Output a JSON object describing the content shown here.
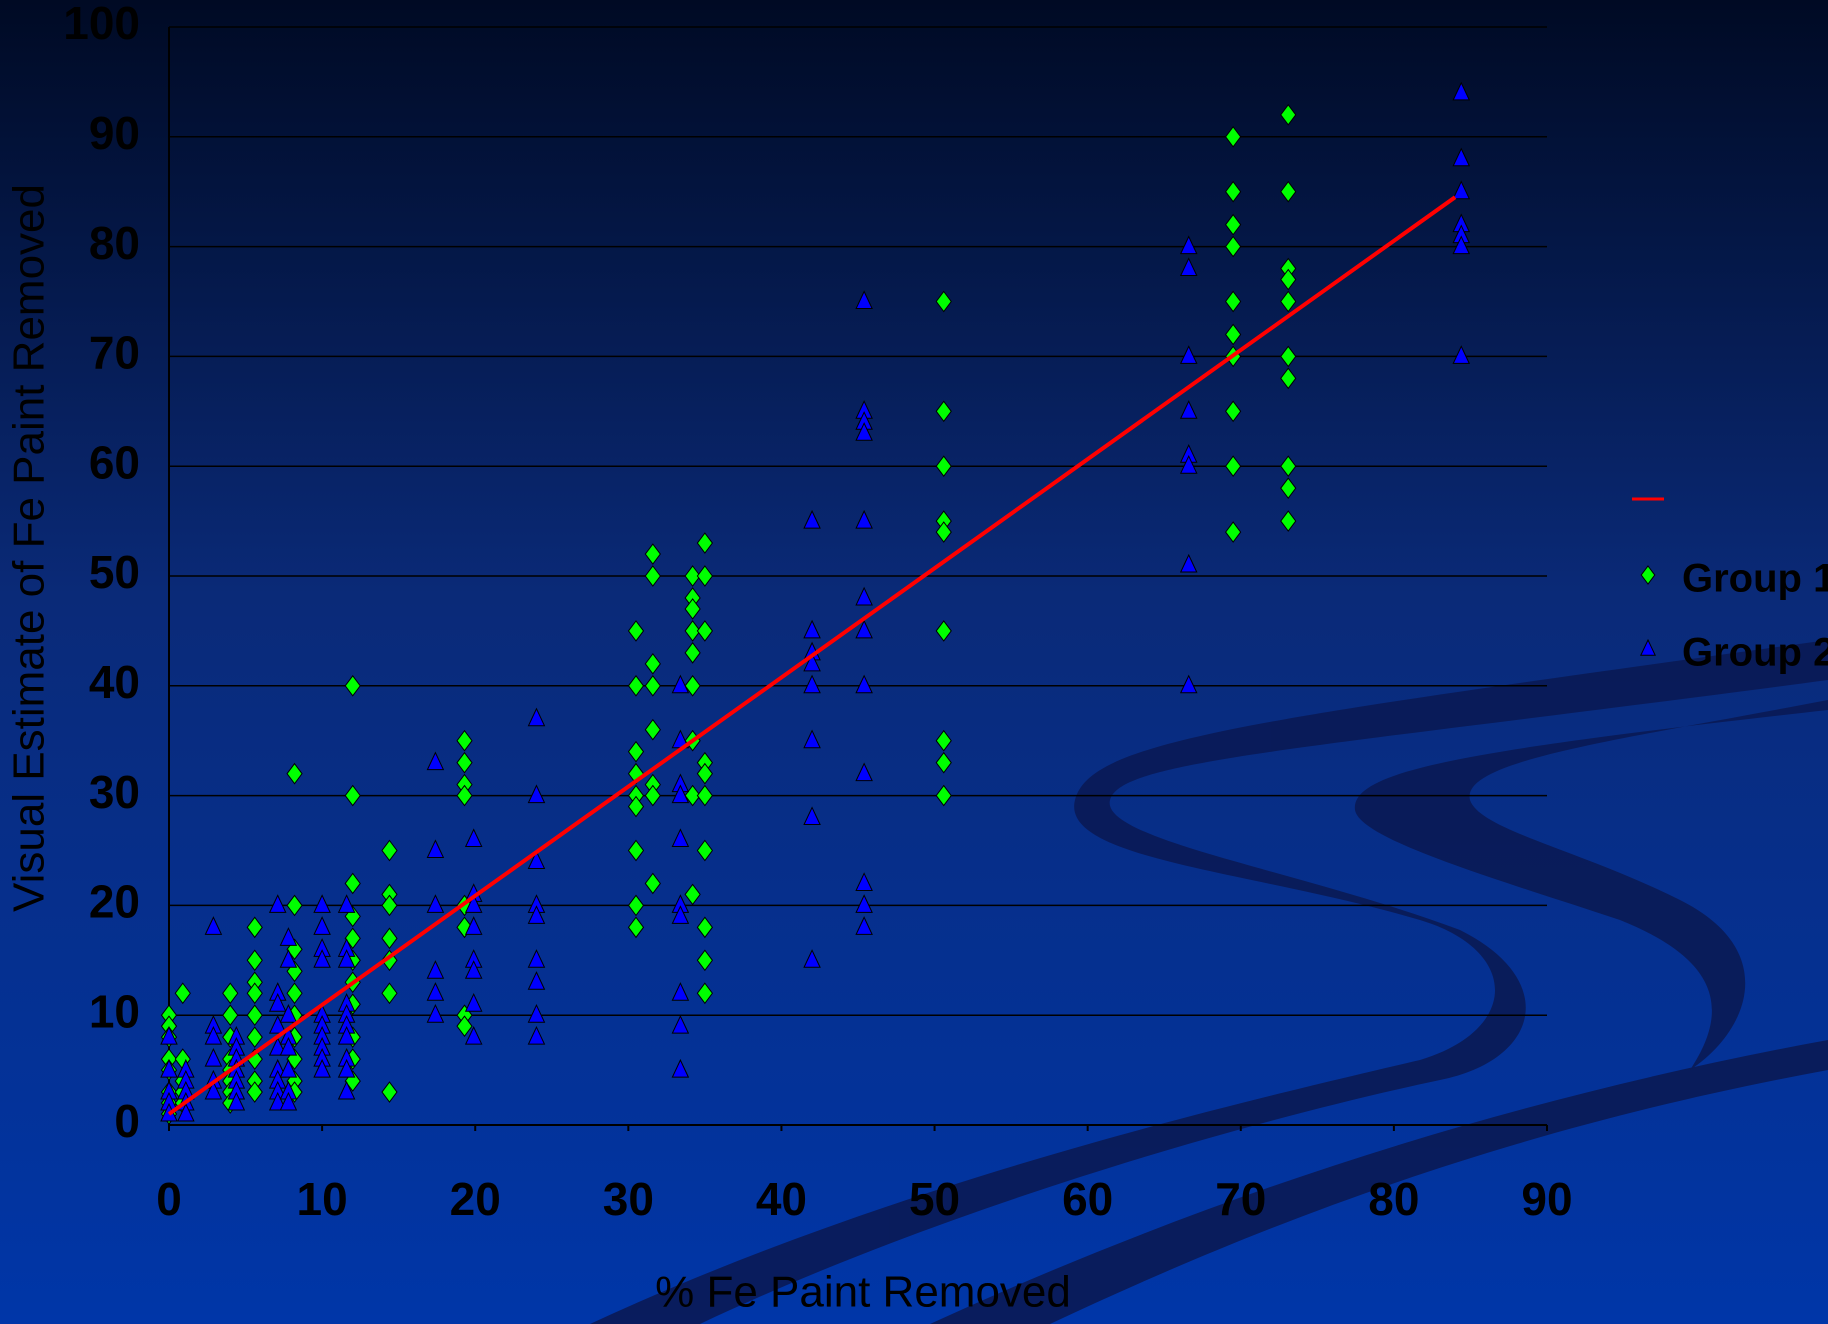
{
  "chart_data": {
    "type": "scatter",
    "xlabel": "% Fe Paint Removed",
    "ylabel": "Visual Estimate of Fe Paint Removed",
    "xlim": [
      0,
      90
    ],
    "xticks": [
      0,
      10,
      20,
      30,
      40,
      50,
      60,
      70,
      80,
      90
    ],
    "ylim": [
      0,
      100
    ],
    "yticks": [
      0,
      10,
      20,
      30,
      40,
      50,
      60,
      70,
      80,
      90,
      100
    ],
    "grid": true,
    "legend": "right",
    "trendline": {
      "color": "#ff0000",
      "x": [
        0,
        84
      ],
      "values": [
        1,
        84.5
      ]
    },
    "series": [
      {
        "name": "Group 1",
        "color": "#00ff00",
        "marker": "diamond",
        "x": [
          0,
          0,
          0,
          0,
          0,
          0,
          0,
          0,
          0.9,
          0.9,
          0.9,
          0.9,
          0.9,
          4,
          4,
          4,
          4,
          4,
          4,
          4,
          4,
          5.6,
          5.6,
          5.6,
          5.6,
          5.6,
          5.6,
          5.6,
          5.6,
          5.6,
          8.2,
          8.2,
          8.2,
          8.2,
          8.2,
          8.2,
          8.2,
          8.2,
          8.2,
          8.2,
          12,
          12,
          12,
          12,
          12,
          12,
          12,
          12,
          12,
          12,
          12,
          14.4,
          14.4,
          14.4,
          14.4,
          14.4,
          14.4,
          14.4,
          19.3,
          19.3,
          19.3,
          19.3,
          19.3,
          19.3,
          19.3,
          19.3,
          30.5,
          30.5,
          30.5,
          30.5,
          30.5,
          30.5,
          30.5,
          30.5,
          30.5,
          31.6,
          31.6,
          31.6,
          31.6,
          31.6,
          31.6,
          31.6,
          31.6,
          34.2,
          34.2,
          34.2,
          34.2,
          34.2,
          34.2,
          34.2,
          34.2,
          34.2,
          35,
          35,
          35,
          35,
          35,
          35,
          35,
          35,
          35,
          35,
          50.6,
          50.6,
          50.6,
          50.6,
          50.6,
          50.6,
          50.6,
          50.6,
          50.6,
          69.5,
          69.5,
          69.5,
          69.5,
          69.5,
          69.5,
          69.5,
          69.5,
          69.5,
          69.5,
          73.1,
          73.1,
          73.1,
          73.1,
          73.1,
          73.1,
          73.1,
          73.1,
          73.1,
          73.1
        ],
        "values": [
          10,
          9,
          8,
          6,
          5,
          3,
          2,
          1,
          12,
          6,
          4,
          3,
          2,
          12,
          10,
          8,
          6,
          5,
          4,
          3,
          2,
          18,
          15,
          13,
          12,
          10,
          8,
          6,
          4,
          3,
          32,
          20,
          16,
          14,
          12,
          10,
          8,
          6,
          4,
          3,
          40,
          30,
          22,
          19,
          17,
          15,
          13,
          11,
          8,
          6,
          4,
          25,
          21,
          20,
          17,
          15,
          12,
          3,
          35,
          33,
          31,
          30,
          20,
          18,
          10,
          9,
          45,
          40,
          34,
          32,
          30,
          29,
          25,
          20,
          18,
          52,
          50,
          42,
          40,
          36,
          31,
          30,
          22,
          50,
          48,
          47,
          45,
          43,
          40,
          35,
          30,
          21,
          53,
          50,
          45,
          33,
          32,
          30,
          25,
          18,
          15,
          12,
          75,
          65,
          60,
          55,
          54,
          45,
          35,
          33,
          30,
          90,
          85,
          82,
          80,
          75,
          72,
          70,
          65,
          60,
          54,
          92,
          85,
          78,
          77,
          75,
          70,
          68,
          60,
          58,
          55
        ]
      },
      {
        "name": "Group 2",
        "color": "#0000ff",
        "marker": "triangle",
        "x": [
          0,
          0,
          0,
          0,
          0,
          1.1,
          1.1,
          1.1,
          1.1,
          1.1,
          2.9,
          2.9,
          2.9,
          2.9,
          2.9,
          2.9,
          4.4,
          4.4,
          4.4,
          4.4,
          4.4,
          4.4,
          4.4,
          7.1,
          7.1,
          7.1,
          7.1,
          7.1,
          7.1,
          7.1,
          7.1,
          7.1,
          7.8,
          7.8,
          7.8,
          7.8,
          7.8,
          7.8,
          7.8,
          7.8,
          10,
          10,
          10,
          10,
          10,
          10,
          10,
          10,
          10,
          10,
          11.6,
          11.6,
          11.6,
          11.6,
          11.6,
          11.6,
          11.6,
          11.6,
          11.6,
          11.6,
          17.4,
          17.4,
          17.4,
          17.4,
          17.4,
          17.4,
          19.9,
          19.9,
          19.9,
          19.9,
          19.9,
          19.9,
          19.9,
          19.9,
          24,
          24,
          24,
          24,
          24,
          24,
          24,
          24,
          24,
          33.4,
          33.4,
          33.4,
          33.4,
          33.4,
          33.4,
          33.4,
          33.4,
          33.4,
          33.4,
          42,
          42,
          42,
          42,
          42,
          42,
          42,
          42,
          45.4,
          45.4,
          45.4,
          45.4,
          45.4,
          45.4,
          45.4,
          45.4,
          45.4,
          45.4,
          45.4,
          45.4,
          66.6,
          66.6,
          66.6,
          66.6,
          66.6,
          66.6,
          66.6,
          66.6,
          84.4,
          84.4,
          84.4,
          84.4,
          84.4,
          84.4,
          84.4
        ],
        "values": [
          8,
          5,
          3,
          2,
          1,
          5,
          4,
          3,
          2,
          1,
          18,
          9,
          8,
          6,
          4,
          3,
          8,
          7,
          6,
          5,
          4,
          3,
          2,
          20,
          12,
          11,
          9,
          7,
          5,
          4,
          3,
          2,
          17,
          15,
          10,
          8,
          7,
          5,
          3,
          2,
          20,
          18,
          16,
          15,
          10,
          9,
          8,
          7,
          6,
          5,
          20,
          16,
          15,
          11,
          10,
          9,
          8,
          6,
          5,
          3,
          33,
          25,
          20,
          14,
          12,
          10,
          26,
          21,
          20,
          18,
          15,
          14,
          11,
          8,
          37,
          30,
          24,
          20,
          19,
          15,
          13,
          10,
          8,
          40,
          35,
          31,
          30,
          26,
          20,
          19,
          12,
          9,
          5,
          55,
          45,
          43,
          42,
          40,
          35,
          28,
          15,
          75,
          65,
          64,
          63,
          55,
          48,
          45,
          40,
          32,
          22,
          20,
          18,
          80,
          78,
          70,
          65,
          61,
          60,
          51,
          40,
          94,
          88,
          85,
          82,
          81,
          80,
          70
        ]
      }
    ]
  }
}
